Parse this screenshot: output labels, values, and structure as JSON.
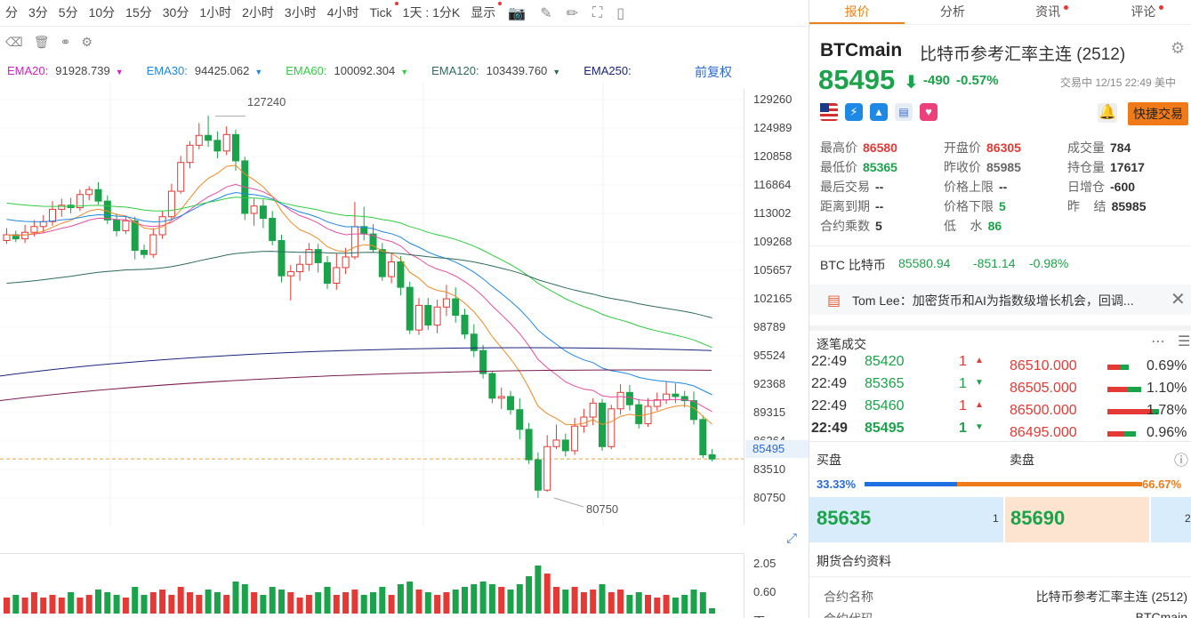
{
  "toolbar": {
    "periods": [
      "分",
      "3分",
      "5分",
      "10分",
      "15分",
      "30分",
      "1小时",
      "2小时",
      "3小时",
      "4小时",
      "Tick",
      "1天 : 1分K",
      "显示"
    ]
  },
  "ema": [
    {
      "label": "EMA20:",
      "value": "91928.739",
      "color": "#d020c8"
    },
    {
      "label": "EMA30:",
      "value": "94425.062",
      "color": "#1e88e5"
    },
    {
      "label": "EMA60:",
      "value": "100092.304",
      "color": "#2ecc40"
    },
    {
      "label": "EMA120:",
      "value": "103439.760",
      "color": "#2e6b5e"
    },
    {
      "label": "EMA250:",
      "value": "",
      "color": "#1a237e"
    }
  ],
  "adjust_label": "前复权",
  "y_axis": [
    "129260",
    "124989",
    "120858",
    "116864",
    "113002",
    "109268",
    "105657",
    "102165",
    "98789",
    "95524",
    "92368",
    "89315",
    "86364",
    "83510",
    "80750"
  ],
  "current_price_tag": "85495",
  "annotations": {
    "high": "127240",
    "low": "80750"
  },
  "volume_axis": [
    "2.05",
    "0.60",
    "下"
  ],
  "tabs": [
    "报价",
    "分析",
    "资讯",
    "评论"
  ],
  "symbol": {
    "code": "BTCmain",
    "name": "比特币参考汇率主连 (2512)",
    "price": "85495",
    "change": "-490",
    "pct": "-0.57%",
    "status": "交易中 12/15 22:49 美中"
  },
  "quick_trade": "快捷交易",
  "stats": [
    [
      {
        "k": "最高价",
        "v": "86580",
        "c": "red"
      },
      {
        "k": "开盘价",
        "v": "86305",
        "c": "red"
      },
      {
        "k": "成交量",
        "v": "784",
        "c": ""
      }
    ],
    [
      {
        "k": "最低价",
        "v": "85365",
        "c": "g"
      },
      {
        "k": "昨收价",
        "v": "85985",
        "c": "lbl"
      },
      {
        "k": "持仓量",
        "v": "17617",
        "c": ""
      }
    ],
    [
      {
        "k": "最后交易",
        "v": "--",
        "c": ""
      },
      {
        "k": "价格上限",
        "v": "--",
        "c": ""
      },
      {
        "k": "日增仓",
        "v": "-600",
        "c": ""
      }
    ],
    [
      {
        "k": "距离到期",
        "v": "--",
        "c": ""
      },
      {
        "k": "价格下限",
        "v": "5",
        "c": "g"
      },
      {
        "k": "昨    结",
        "v": "85985",
        "c": ""
      }
    ],
    [
      {
        "k": "合约乘数",
        "v": "5",
        "c": ""
      },
      {
        "k": "低    水",
        "v": "86",
        "c": "g"
      },
      {
        "k": "",
        "v": "",
        "c": ""
      }
    ]
  ],
  "btc_ref": {
    "label": "BTC 比特币",
    "price": "85580.94",
    "change": "-851.14",
    "pct": "-0.98%"
  },
  "news": "Tom Lee：加密货币和AI为指数级增长机会，回调...",
  "ticks_title": "逐笔成交",
  "ticks": [
    {
      "t": "22:49",
      "p": "85420",
      "q": "1",
      "d": "up"
    },
    {
      "t": "22:49",
      "p": "85365",
      "q": "1",
      "d": "down"
    },
    {
      "t": "22:49",
      "p": "85460",
      "q": "1",
      "d": "up"
    },
    {
      "t": "22:49",
      "p": "85495",
      "q": "1",
      "d": "down"
    }
  ],
  "depth": [
    {
      "p": "86510.000",
      "pct": "0.69%"
    },
    {
      "p": "86505.000",
      "pct": "1.10%"
    },
    {
      "p": "86500.000",
      "pct": "1.78%"
    },
    {
      "p": "86495.000",
      "pct": "0.96%"
    }
  ],
  "bidask": {
    "buy_label": "买盘",
    "sell_label": "卖盘",
    "buy_pct": "33.33%",
    "sell_pct": "66.67%",
    "bid": "85635",
    "bid_qty": "1",
    "ask": "85690",
    "ask_qty": "2"
  },
  "contract": {
    "title": "期货合约资料",
    "name_label": "合约名称",
    "name_value": "比特币参考汇率主连 (2512)",
    "code_label": "合约代码",
    "code_value": "BTCmain"
  }
}
